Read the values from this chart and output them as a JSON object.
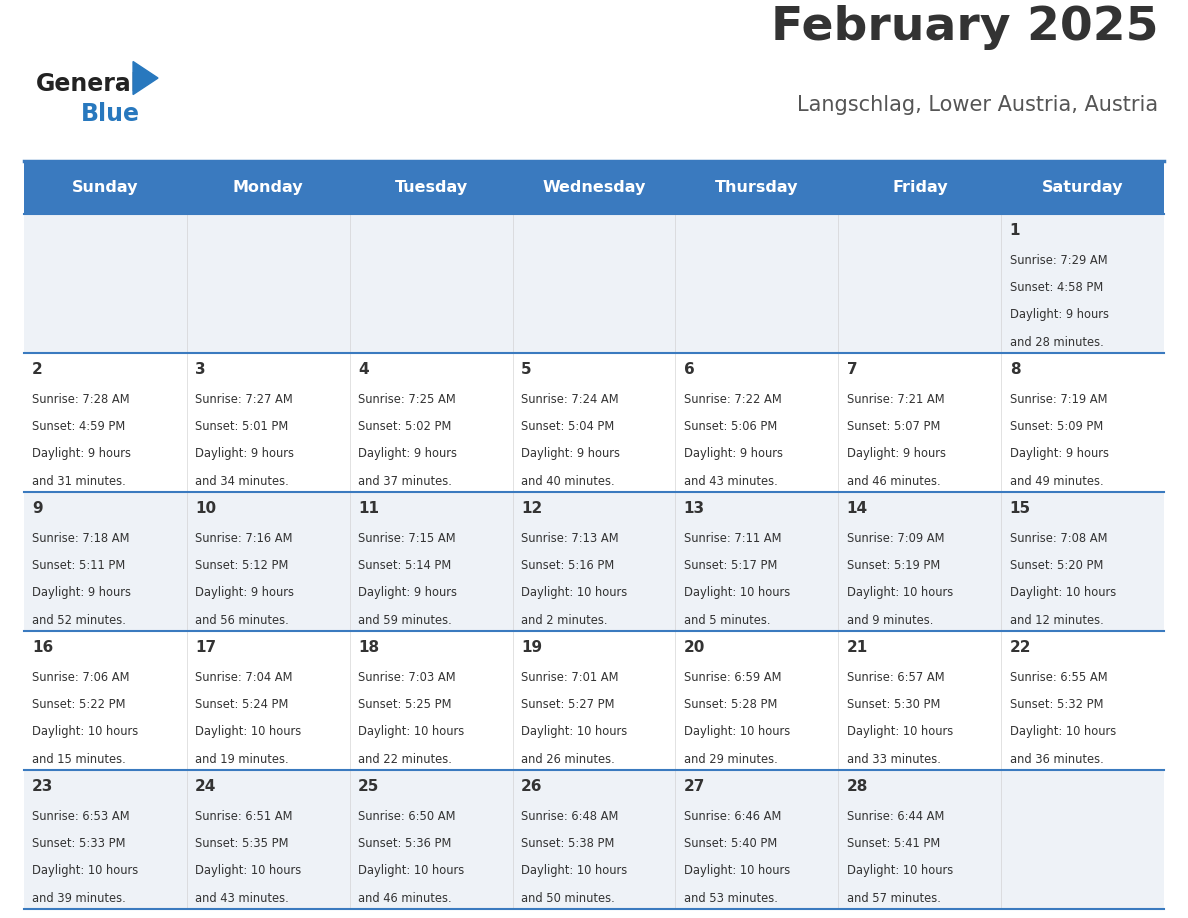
{
  "title": "February 2025",
  "subtitle": "Langschlag, Lower Austria, Austria",
  "days_of_week": [
    "Sunday",
    "Monday",
    "Tuesday",
    "Wednesday",
    "Thursday",
    "Friday",
    "Saturday"
  ],
  "header_bg": "#3a7abf",
  "header_text": "#ffffff",
  "row_bg_even": "#eef2f7",
  "row_bg_odd": "#ffffff",
  "cell_border": "#3a7abf",
  "day_number_color": "#333333",
  "info_text_color": "#333333",
  "title_color": "#333333",
  "subtitle_color": "#555555",
  "logo_general_color": "#222222",
  "logo_blue_color": "#2878be",
  "calendar_data": [
    {
      "day": 1,
      "col": 6,
      "row": 0,
      "sunrise": "7:29 AM",
      "sunset": "4:58 PM",
      "daylight_h": "9 hours",
      "daylight_m": "28 minutes."
    },
    {
      "day": 2,
      "col": 0,
      "row": 1,
      "sunrise": "7:28 AM",
      "sunset": "4:59 PM",
      "daylight_h": "9 hours",
      "daylight_m": "31 minutes."
    },
    {
      "day": 3,
      "col": 1,
      "row": 1,
      "sunrise": "7:27 AM",
      "sunset": "5:01 PM",
      "daylight_h": "9 hours",
      "daylight_m": "34 minutes."
    },
    {
      "day": 4,
      "col": 2,
      "row": 1,
      "sunrise": "7:25 AM",
      "sunset": "5:02 PM",
      "daylight_h": "9 hours",
      "daylight_m": "37 minutes."
    },
    {
      "day": 5,
      "col": 3,
      "row": 1,
      "sunrise": "7:24 AM",
      "sunset": "5:04 PM",
      "daylight_h": "9 hours",
      "daylight_m": "40 minutes."
    },
    {
      "day": 6,
      "col": 4,
      "row": 1,
      "sunrise": "7:22 AM",
      "sunset": "5:06 PM",
      "daylight_h": "9 hours",
      "daylight_m": "43 minutes."
    },
    {
      "day": 7,
      "col": 5,
      "row": 1,
      "sunrise": "7:21 AM",
      "sunset": "5:07 PM",
      "daylight_h": "9 hours",
      "daylight_m": "46 minutes."
    },
    {
      "day": 8,
      "col": 6,
      "row": 1,
      "sunrise": "7:19 AM",
      "sunset": "5:09 PM",
      "daylight_h": "9 hours",
      "daylight_m": "49 minutes."
    },
    {
      "day": 9,
      "col": 0,
      "row": 2,
      "sunrise": "7:18 AM",
      "sunset": "5:11 PM",
      "daylight_h": "9 hours",
      "daylight_m": "52 minutes."
    },
    {
      "day": 10,
      "col": 1,
      "row": 2,
      "sunrise": "7:16 AM",
      "sunset": "5:12 PM",
      "daylight_h": "9 hours",
      "daylight_m": "56 minutes."
    },
    {
      "day": 11,
      "col": 2,
      "row": 2,
      "sunrise": "7:15 AM",
      "sunset": "5:14 PM",
      "daylight_h": "9 hours",
      "daylight_m": "59 minutes."
    },
    {
      "day": 12,
      "col": 3,
      "row": 2,
      "sunrise": "7:13 AM",
      "sunset": "5:16 PM",
      "daylight_h": "10 hours",
      "daylight_m": "2 minutes."
    },
    {
      "day": 13,
      "col": 4,
      "row": 2,
      "sunrise": "7:11 AM",
      "sunset": "5:17 PM",
      "daylight_h": "10 hours",
      "daylight_m": "5 minutes."
    },
    {
      "day": 14,
      "col": 5,
      "row": 2,
      "sunrise": "7:09 AM",
      "sunset": "5:19 PM",
      "daylight_h": "10 hours",
      "daylight_m": "9 minutes."
    },
    {
      "day": 15,
      "col": 6,
      "row": 2,
      "sunrise": "7:08 AM",
      "sunset": "5:20 PM",
      "daylight_h": "10 hours",
      "daylight_m": "12 minutes."
    },
    {
      "day": 16,
      "col": 0,
      "row": 3,
      "sunrise": "7:06 AM",
      "sunset": "5:22 PM",
      "daylight_h": "10 hours",
      "daylight_m": "15 minutes."
    },
    {
      "day": 17,
      "col": 1,
      "row": 3,
      "sunrise": "7:04 AM",
      "sunset": "5:24 PM",
      "daylight_h": "10 hours",
      "daylight_m": "19 minutes."
    },
    {
      "day": 18,
      "col": 2,
      "row": 3,
      "sunrise": "7:03 AM",
      "sunset": "5:25 PM",
      "daylight_h": "10 hours",
      "daylight_m": "22 minutes."
    },
    {
      "day": 19,
      "col": 3,
      "row": 3,
      "sunrise": "7:01 AM",
      "sunset": "5:27 PM",
      "daylight_h": "10 hours",
      "daylight_m": "26 minutes."
    },
    {
      "day": 20,
      "col": 4,
      "row": 3,
      "sunrise": "6:59 AM",
      "sunset": "5:28 PM",
      "daylight_h": "10 hours",
      "daylight_m": "29 minutes."
    },
    {
      "day": 21,
      "col": 5,
      "row": 3,
      "sunrise": "6:57 AM",
      "sunset": "5:30 PM",
      "daylight_h": "10 hours",
      "daylight_m": "33 minutes."
    },
    {
      "day": 22,
      "col": 6,
      "row": 3,
      "sunrise": "6:55 AM",
      "sunset": "5:32 PM",
      "daylight_h": "10 hours",
      "daylight_m": "36 minutes."
    },
    {
      "day": 23,
      "col": 0,
      "row": 4,
      "sunrise": "6:53 AM",
      "sunset": "5:33 PM",
      "daylight_h": "10 hours",
      "daylight_m": "39 minutes."
    },
    {
      "day": 24,
      "col": 1,
      "row": 4,
      "sunrise": "6:51 AM",
      "sunset": "5:35 PM",
      "daylight_h": "10 hours",
      "daylight_m": "43 minutes."
    },
    {
      "day": 25,
      "col": 2,
      "row": 4,
      "sunrise": "6:50 AM",
      "sunset": "5:36 PM",
      "daylight_h": "10 hours",
      "daylight_m": "46 minutes."
    },
    {
      "day": 26,
      "col": 3,
      "row": 4,
      "sunrise": "6:48 AM",
      "sunset": "5:38 PM",
      "daylight_h": "10 hours",
      "daylight_m": "50 minutes."
    },
    {
      "day": 27,
      "col": 4,
      "row": 4,
      "sunrise": "6:46 AM",
      "sunset": "5:40 PM",
      "daylight_h": "10 hours",
      "daylight_m": "53 minutes."
    },
    {
      "day": 28,
      "col": 5,
      "row": 4,
      "sunrise": "6:44 AM",
      "sunset": "5:41 PM",
      "daylight_h": "10 hours",
      "daylight_m": "57 minutes."
    }
  ]
}
